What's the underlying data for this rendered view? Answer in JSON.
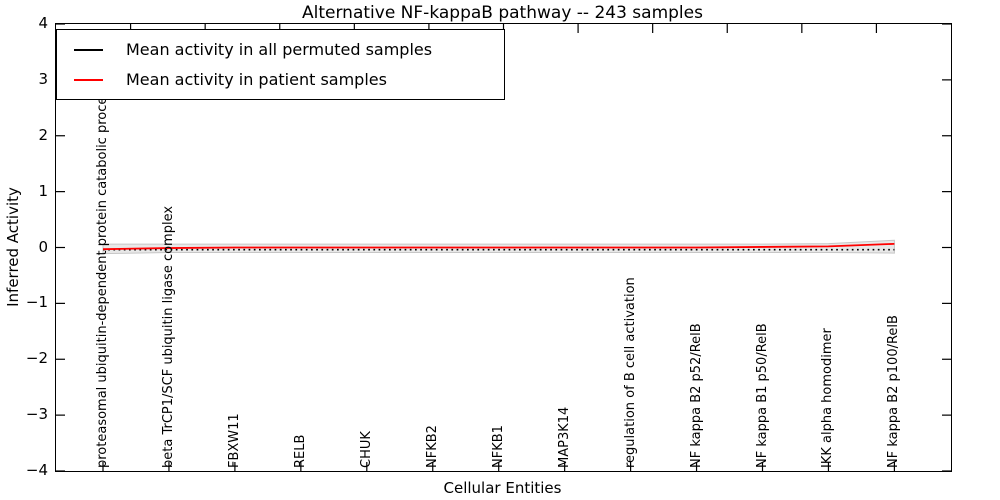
{
  "chart_data": {
    "type": "line",
    "title": "Alternative NF-kappaB pathway -- 243 samples",
    "xlabel": "Cellular Entities",
    "ylabel": "Inferred Activity",
    "ylim": [
      -4,
      4
    ],
    "ytick_values": [
      4,
      3,
      2,
      1,
      0,
      -1,
      -2,
      -3,
      -4
    ],
    "ytick_labels": [
      "4",
      "3",
      "2",
      "1",
      "0",
      "−1",
      "−2",
      "−3",
      "−4"
    ],
    "grid": false,
    "legend_position": "upper left",
    "categories": [
      "proteasomal ubiquitin-dependent protein catabolic process",
      "beta TrCP1/SCF ubiquitin ligase complex",
      "FBXW11",
      "RELB",
      "CHUK",
      "NFKB2",
      "NFKB1",
      "MAP3K14",
      "regulation of B cell activation",
      "NF kappa B2 p52/RelB",
      "NF kappa B1 p50/RelB",
      "IKK alpha homodimer",
      "NF kappa B2 p100/RelB"
    ],
    "series": [
      {
        "name": "Mean activity in all permuted samples",
        "color": "#000000",
        "line_style": "dotted",
        "values": [
          -0.04,
          -0.04,
          -0.04,
          -0.04,
          -0.04,
          -0.04,
          -0.04,
          -0.04,
          -0.04,
          -0.04,
          -0.04,
          -0.04,
          -0.04
        ]
      },
      {
        "name": "Mean activity in patient samples",
        "color": "#ff0000",
        "line_style": "solid",
        "values": [
          -0.03,
          -0.01,
          0.0,
          0.0,
          0.0,
          0.0,
          0.0,
          0.0,
          0.0,
          0.0,
          0.01,
          0.02,
          0.065
        ]
      }
    ],
    "band": {
      "upper": [
        0.06,
        0.06,
        0.06,
        0.06,
        0.06,
        0.06,
        0.06,
        0.06,
        0.06,
        0.06,
        0.06,
        0.07,
        0.13
      ],
      "lower": [
        -0.11,
        -0.09,
        -0.09,
        -0.09,
        -0.09,
        -0.09,
        -0.09,
        -0.09,
        -0.09,
        -0.09,
        -0.09,
        -0.09,
        -0.1
      ],
      "fill_color": "#e8e8e8",
      "edge_color": "#c6c6c6"
    }
  }
}
